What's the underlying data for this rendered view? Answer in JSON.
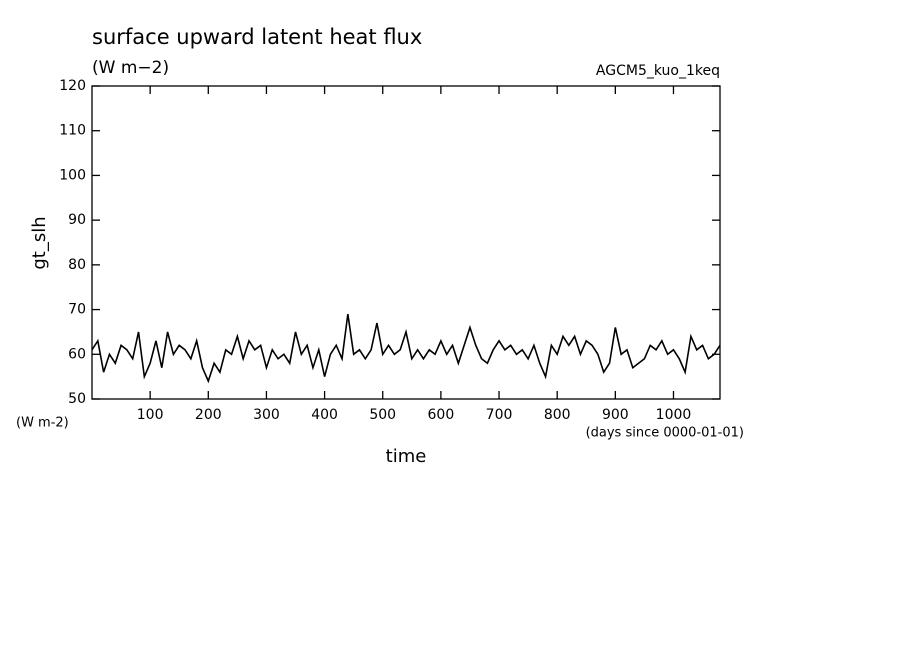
{
  "chart_data": {
    "type": "line",
    "title": "surface upward latent heat flux",
    "subtitle": "(W m−2)",
    "annotation": "AGCM5_kuo_1keq",
    "ylabel": "gt_slh",
    "y_unit_label": "(W m-2)",
    "xlabel": "time",
    "x_unit_label": "(days since 0000-01-01)",
    "xlim": [
      0,
      1080
    ],
    "ylim": [
      50,
      120
    ],
    "xticks": [
      100,
      200,
      300,
      400,
      500,
      600,
      700,
      800,
      900,
      1000
    ],
    "yticks": [
      50,
      60,
      70,
      80,
      90,
      100,
      110,
      120
    ],
    "color": "#000000",
    "x": [
      0,
      10,
      20,
      30,
      40,
      50,
      60,
      70,
      80,
      90,
      100,
      110,
      120,
      130,
      140,
      150,
      160,
      170,
      180,
      190,
      200,
      210,
      220,
      230,
      240,
      250,
      260,
      270,
      280,
      290,
      300,
      310,
      320,
      330,
      340,
      350,
      360,
      370,
      380,
      390,
      400,
      410,
      420,
      430,
      440,
      450,
      460,
      470,
      480,
      490,
      500,
      510,
      520,
      530,
      540,
      550,
      560,
      570,
      580,
      590,
      600,
      610,
      620,
      630,
      640,
      650,
      660,
      670,
      680,
      690,
      700,
      710,
      720,
      730,
      740,
      750,
      760,
      770,
      780,
      790,
      800,
      810,
      820,
      830,
      840,
      850,
      860,
      870,
      880,
      890,
      900,
      910,
      920,
      930,
      940,
      950,
      960,
      970,
      980,
      990,
      1000,
      1010,
      1020,
      1030,
      1040,
      1050,
      1060,
      1070,
      1080
    ],
    "values": [
      61,
      63,
      56,
      60,
      58,
      62,
      61,
      59,
      65,
      55,
      58,
      63,
      57,
      65,
      60,
      62,
      61,
      59,
      63,
      57,
      54,
      58,
      56,
      61,
      60,
      64,
      59,
      63,
      61,
      62,
      57,
      61,
      59,
      60,
      58,
      65,
      60,
      62,
      57,
      61,
      55,
      60,
      62,
      59,
      69,
      60,
      61,
      59,
      61,
      67,
      60,
      62,
      60,
      61,
      65,
      59,
      61,
      59,
      61,
      60,
      63,
      60,
      62,
      58,
      62,
      66,
      62,
      59,
      58,
      61,
      63,
      61,
      62,
      60,
      61,
      59,
      62,
      58,
      55,
      62,
      60,
      64,
      62,
      64,
      60,
      63,
      62,
      60,
      56,
      58,
      66,
      60,
      61,
      57,
      58,
      59,
      62,
      61,
      63,
      60,
      61,
      59,
      56,
      64,
      61,
      62,
      59,
      60,
      62
    ]
  }
}
